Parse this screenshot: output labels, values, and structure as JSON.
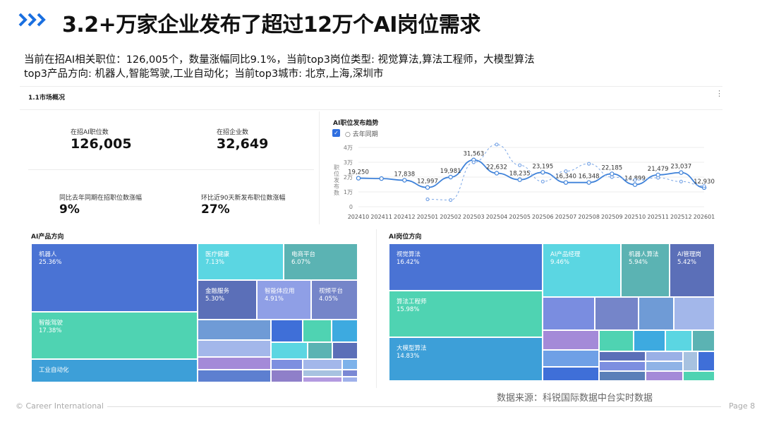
{
  "header": {
    "title": "3.2+万家企业发布了超过12万个AI岗位需求",
    "summary_line1": "当前在招AI相关职位：126,005个，数量涨幅同比9.1%，当前top3岗位类型: 视觉算法,算法工程师，大模型算法",
    "summary_line2": "top3产品方向: 机器人,智能驾驶,工业自动化；当前top3城市: 北京,上海,深圳市"
  },
  "market": {
    "section_title": "1.1市场概况",
    "kpis": [
      {
        "label": "在招AI职位数",
        "value": "126,005"
      },
      {
        "label": "在招企业数",
        "value": "32,649"
      },
      {
        "label": "同比去年同期在招职位数涨幅",
        "value": "9%"
      },
      {
        "label": "环比近90天新发布职位数涨幅",
        "value": "27%"
      }
    ]
  },
  "trend": {
    "title": "AI职位发布趋势",
    "legend_label": "去年同期",
    "ylabel": "职位发布数",
    "yticks": [
      "4万",
      "3万",
      "2万",
      "1万",
      "0"
    ]
  },
  "product_direction": {
    "title": "AI产品方向",
    "cells": [
      {
        "name": "机器人",
        "pct": "25.36%",
        "color": "#4a73d4"
      },
      {
        "name": "智能驾驶",
        "pct": "17.38%",
        "color": "#4fd3b2"
      },
      {
        "name": "工业自动化",
        "pct": "",
        "color": "#3d9fd8"
      },
      {
        "name": "医疗健康",
        "pct": "7.13%",
        "color": "#5bd6e2"
      },
      {
        "name": "电商平台",
        "pct": "6.07%",
        "color": "#5bb3b3"
      },
      {
        "name": "金融服务",
        "pct": "5.30%",
        "color": "#5b6fb8"
      },
      {
        "name": "智能体应用",
        "pct": "4.91%",
        "color": "#8f9fe6"
      },
      {
        "name": "视频平台",
        "pct": "4.05%",
        "color": "#7585c9"
      }
    ]
  },
  "job_direction": {
    "title": "AI岗位方向",
    "cells": [
      {
        "name": "视觉算法",
        "pct": "16.42%",
        "color": "#4a73d4"
      },
      {
        "name": "算法工程师",
        "pct": "15.98%",
        "color": "#4fd3b2"
      },
      {
        "name": "大模型算法",
        "pct": "14.83%",
        "color": "#3d9fd8"
      },
      {
        "name": "AI产品经理",
        "pct": "9.46%",
        "color": "#5bd6e2"
      },
      {
        "name": "机器人算法",
        "pct": "5.94%",
        "color": "#5bb3b3"
      },
      {
        "name": "AI管理岗",
        "pct": "5.42%",
        "color": "#5b6fb8"
      }
    ]
  },
  "chart_data": {
    "type": "line",
    "title": "AI职位发布趋势",
    "x": [
      "202410",
      "202411",
      "202412",
      "202501",
      "202502",
      "202503",
      "202504",
      "202505",
      "202506",
      "202507",
      "202508",
      "202509",
      "202510",
      "202511",
      "202512",
      "202601"
    ],
    "ylabel": "职位发布数",
    "ylim": [
      0,
      40000
    ],
    "yticks": [
      0,
      10000,
      20000,
      30000,
      40000
    ],
    "series": [
      {
        "values": [
          19250,
          19000,
          17838,
          12997,
          19981,
          31563,
          22632,
          18235,
          23195,
          16340,
          16348,
          22185,
          14899,
          21479,
          23037,
          12930
        ],
        "labels": [
          "19,250",
          "",
          "17,838",
          "12,997",
          "19,981",
          "31,563",
          "22,632",
          "18,235",
          "23,195",
          "16,340",
          "16,348",
          "22,185",
          "14,899",
          "21,479",
          "23,037",
          "12,930"
        ],
        "color": "#3f82d9",
        "style": "solid"
      },
      {
        "name": "去年同期",
        "values": [
          null,
          null,
          null,
          5000,
          4500,
          30000,
          42000,
          28000,
          17000,
          24000,
          29000,
          20000,
          18000,
          19500,
          17000,
          14000
        ],
        "color": "#7aa6e6",
        "style": "dashed"
      }
    ],
    "grid": true,
    "legend": "top-left"
  },
  "footer": {
    "copyright": "© Career International",
    "page": "Page 8",
    "source": "数据来源：科锐国际数据中台实时数据"
  }
}
